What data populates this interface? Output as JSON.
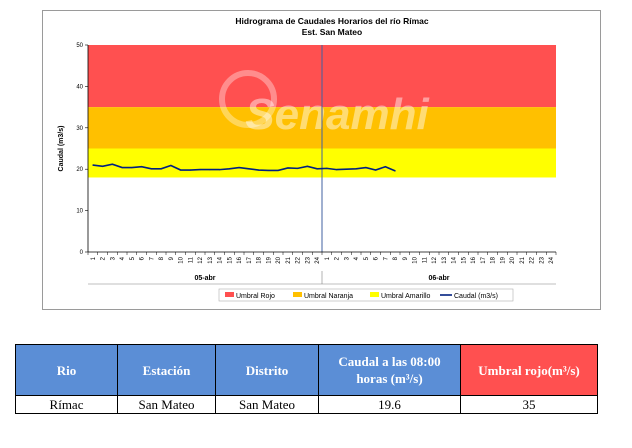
{
  "chart_data": {
    "type": "line",
    "title": "Hidrograma de Caudales Horarios del río Rímac",
    "subtitle": "Est. San Mateo",
    "ylabel": "Caudal  (m3/s)",
    "ylim": [
      0,
      50
    ],
    "yticks": [
      "0",
      "10",
      "20",
      "30",
      "40",
      "50"
    ],
    "xticks": [
      "1",
      "2",
      "3",
      "4",
      "5",
      "6",
      "7",
      "8",
      "9",
      "10",
      "11",
      "12",
      "13",
      "14",
      "15",
      "16",
      "17",
      "18",
      "19",
      "20",
      "21",
      "22",
      "23",
      "24",
      "1",
      "2",
      "3",
      "4",
      "5",
      "6",
      "7",
      "8",
      "9",
      "10",
      "11",
      "12",
      "13",
      "14",
      "15",
      "16",
      "17",
      "18",
      "19",
      "20",
      "21",
      "22",
      "23",
      "24"
    ],
    "date_labels": [
      "05-abr",
      "06-abr"
    ],
    "thresholds": [
      {
        "name": "Umbral Rojo",
        "from": 35,
        "to": 50,
        "color": "#ff5050"
      },
      {
        "name": "Umbral Naranja",
        "from": 25,
        "to": 35,
        "color": "#ffc000"
      },
      {
        "name": "Umbral Amarillo",
        "from": 18,
        "to": 25,
        "color": "#ffff00"
      }
    ],
    "series": [
      {
        "name": "Caudal (m3/s)",
        "color": "#002080",
        "values": [
          21.0,
          20.7,
          21.2,
          20.4,
          20.4,
          20.6,
          20.1,
          20.1,
          20.9,
          19.8,
          19.8,
          19.9,
          19.9,
          19.9,
          20.1,
          20.4,
          20.1,
          19.8,
          19.7,
          19.7,
          20.3,
          20.2,
          20.7,
          20.1,
          20.2,
          19.9,
          20.0,
          20.1,
          20.4,
          19.8,
          20.6,
          19.6
        ]
      }
    ],
    "legend": [
      "Umbral Rojo",
      "Umbral Naranja",
      "Umbral Amarillo",
      "Caudal (m3/s)"
    ],
    "legend_position": "bottom",
    "watermark": "Senamhi",
    "grid": false
  },
  "table": {
    "headers": [
      "Rio",
      "Estación",
      "Distrito",
      "Caudal a las 08:00 horas (m³/s)",
      "Umbral rojo(m³/s)"
    ],
    "row": [
      "Rímac",
      "San Mateo",
      "San Mateo",
      "19.6",
      "35"
    ]
  }
}
